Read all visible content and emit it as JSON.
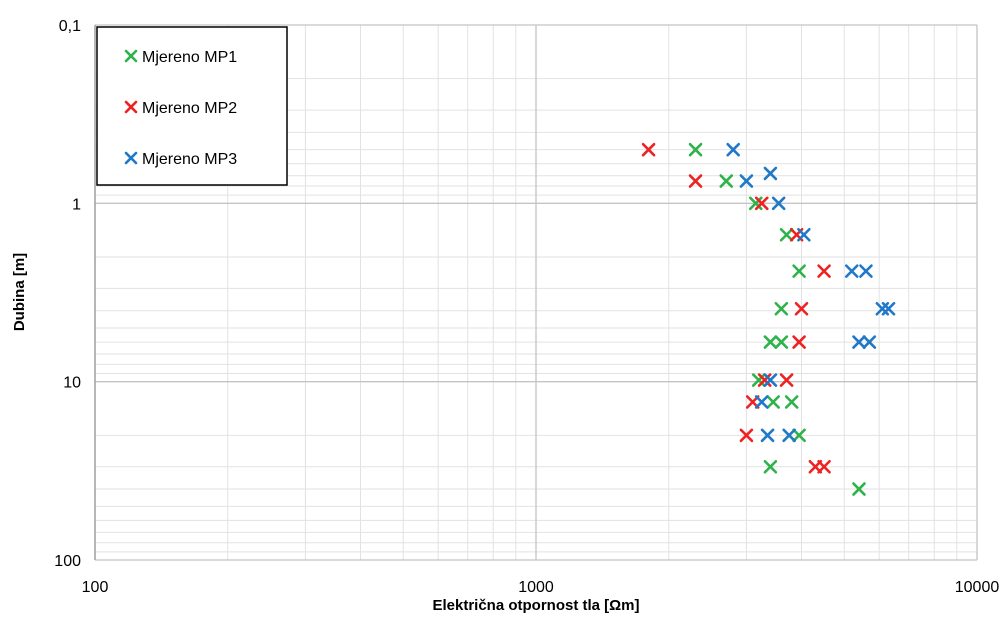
{
  "chart_data": {
    "type": "scatter",
    "xscale": "log",
    "yscale": "log",
    "y_reversed": true,
    "xlim": [
      100,
      10000
    ],
    "ylim": [
      0.1,
      100
    ],
    "xlabel": "Električna otpornost tla [Ωm]",
    "ylabel": "Dubina [m]",
    "x_ticks": [
      {
        "value": 100,
        "label": "100"
      },
      {
        "value": 1000,
        "label": "1000"
      },
      {
        "value": 10000,
        "label": "10000"
      }
    ],
    "y_ticks": [
      {
        "value": 0.1,
        "label": "0,1"
      },
      {
        "value": 1,
        "label": "1"
      },
      {
        "value": 10,
        "label": "10"
      },
      {
        "value": 100,
        "label": "100"
      }
    ],
    "grid": true,
    "legend_position": "top-left",
    "series": [
      {
        "name": "Mjereno MP1",
        "color": "#2db34a",
        "marker": "x",
        "points": [
          {
            "x": 2300,
            "y": 0.5
          },
          {
            "x": 2700,
            "y": 0.75
          },
          {
            "x": 3150,
            "y": 1.0
          },
          {
            "x": 3700,
            "y": 1.5
          },
          {
            "x": 3950,
            "y": 2.4
          },
          {
            "x": 3600,
            "y": 3.9
          },
          {
            "x": 3400,
            "y": 6.0
          },
          {
            "x": 3600,
            "y": 6.0
          },
          {
            "x": 3200,
            "y": 9.8
          },
          {
            "x": 3450,
            "y": 13.0
          },
          {
            "x": 3800,
            "y": 13.0
          },
          {
            "x": 3950,
            "y": 20.0
          },
          {
            "x": 3400,
            "y": 30.0
          },
          {
            "x": 5400,
            "y": 40.0
          }
        ]
      },
      {
        "name": "Mjereno MP2",
        "color": "#ee2222",
        "marker": "x",
        "points": [
          {
            "x": 1800,
            "y": 0.5
          },
          {
            "x": 2300,
            "y": 0.75
          },
          {
            "x": 3250,
            "y": 1.0
          },
          {
            "x": 3900,
            "y": 1.5
          },
          {
            "x": 4500,
            "y": 2.4
          },
          {
            "x": 4000,
            "y": 3.9
          },
          {
            "x": 3950,
            "y": 6.0
          },
          {
            "x": 3300,
            "y": 9.8
          },
          {
            "x": 3700,
            "y": 9.8
          },
          {
            "x": 3100,
            "y": 13.0
          },
          {
            "x": 3000,
            "y": 20.0
          },
          {
            "x": 4300,
            "y": 30.0
          },
          {
            "x": 4500,
            "y": 30.0
          }
        ]
      },
      {
        "name": "Mjereno MP3",
        "color": "#1f78c8",
        "marker": "x",
        "points": [
          {
            "x": 2800,
            "y": 0.5
          },
          {
            "x": 3000,
            "y": 0.75
          },
          {
            "x": 3400,
            "y": 0.68
          },
          {
            "x": 3550,
            "y": 1.0
          },
          {
            "x": 4050,
            "y": 1.5
          },
          {
            "x": 5200,
            "y": 2.4
          },
          {
            "x": 5600,
            "y": 2.4
          },
          {
            "x": 6100,
            "y": 3.9
          },
          {
            "x": 6300,
            "y": 3.9
          },
          {
            "x": 5400,
            "y": 6.0
          },
          {
            "x": 5700,
            "y": 6.0
          },
          {
            "x": 3400,
            "y": 9.8
          },
          {
            "x": 3250,
            "y": 13.0
          },
          {
            "x": 3350,
            "y": 20.0
          },
          {
            "x": 3750,
            "y": 20.0
          }
        ]
      }
    ]
  }
}
